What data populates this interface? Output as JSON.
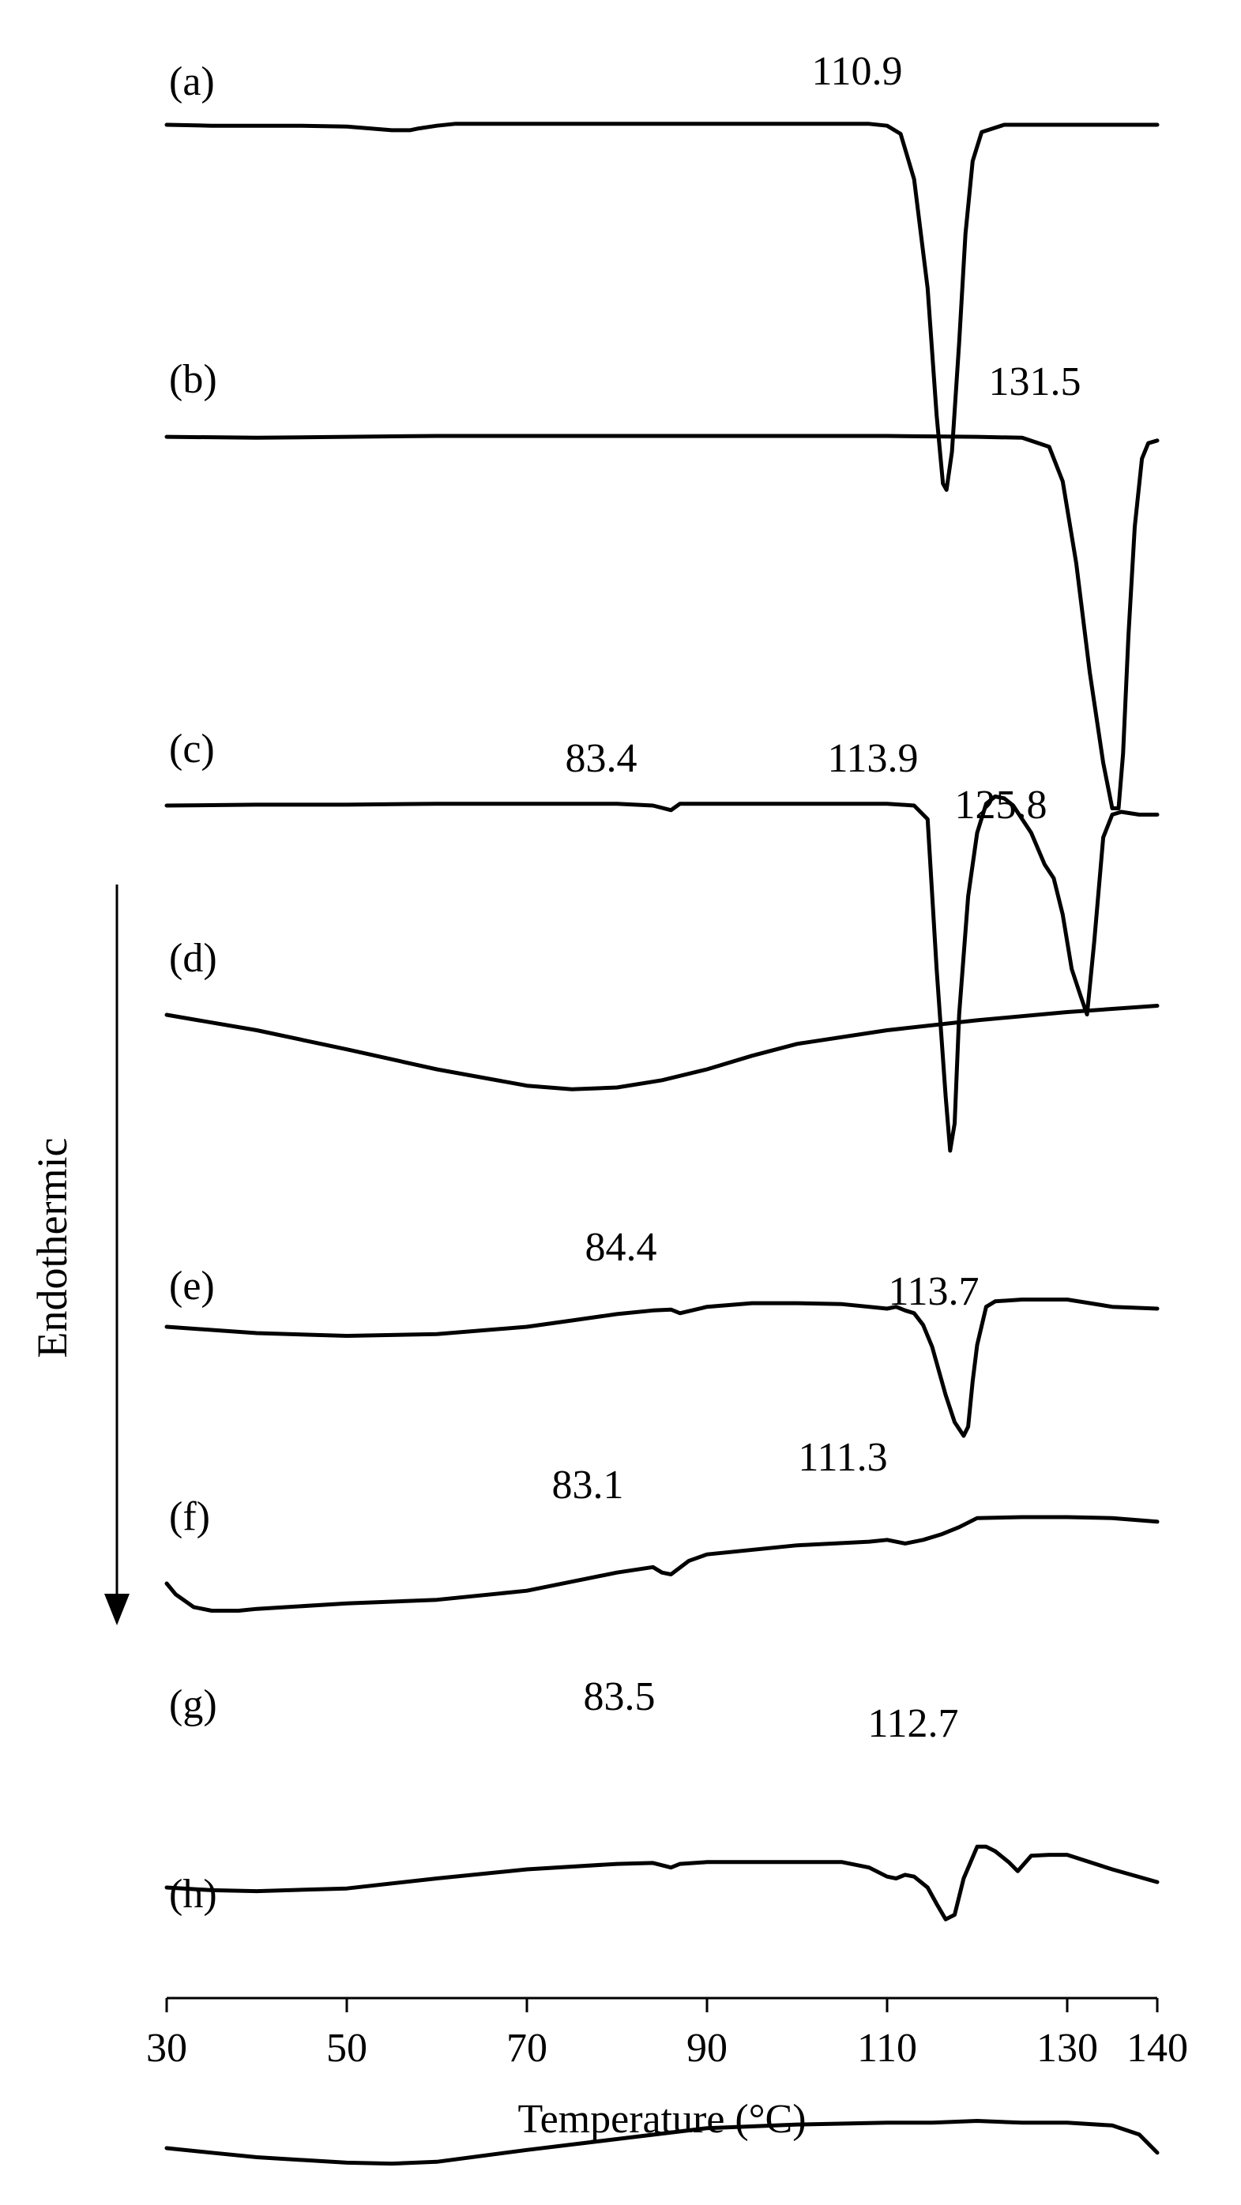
{
  "chart_data": {
    "type": "line",
    "xlabel": "Temperature (°C)",
    "ylabel": "Endothermic",
    "xlim": [
      30,
      140
    ],
    "xticks": [
      "30",
      "50",
      "70",
      "90",
      "110",
      "130",
      "140"
    ],
    "yticks_shown": false,
    "grid": false,
    "legend": "none",
    "series": [
      {
        "name": "(a)",
        "annotations": [
          "110.9"
        ],
        "x": [
          30,
          35,
          40,
          45,
          50,
          55,
          57,
          58,
          60,
          62,
          65,
          70,
          80,
          90,
          100,
          108,
          110,
          111.5,
          113,
          114.5,
          115.5,
          116.2,
          116.6,
          117.2,
          118,
          118.7,
          119.5,
          120.5,
          123,
          130,
          140
        ],
        "y": [
          0,
          0.01,
          0.01,
          0.01,
          0.02,
          0.06,
          0.06,
          0.04,
          0.01,
          -0.01,
          -0.01,
          -0.01,
          -0.01,
          -0.01,
          -0.01,
          -0.01,
          0.01,
          0.1,
          0.6,
          1.8,
          3.2,
          3.95,
          4.02,
          3.6,
          2.4,
          1.2,
          0.4,
          0.08,
          0.0,
          0.0,
          0.0
        ]
      },
      {
        "name": "(b)",
        "annotations": [
          "131.5"
        ],
        "x": [
          30,
          40,
          50,
          60,
          70,
          80,
          90,
          100,
          110,
          120,
          125,
          128,
          129.5,
          131,
          132.5,
          134,
          135,
          135.7,
          136.2,
          136.8,
          137.5,
          138.3,
          139,
          140
        ],
        "y": [
          0.01,
          0.02,
          0.01,
          0.0,
          0.0,
          0.0,
          0.0,
          0.0,
          0.0,
          0.01,
          0.02,
          0.12,
          0.5,
          1.4,
          2.6,
          3.6,
          4.1,
          4.1,
          3.5,
          2.2,
          1.0,
          0.25,
          0.08,
          0.05
        ]
      },
      {
        "name": "(c)",
        "annotations": [
          "83.4",
          "113.9",
          "125.8"
        ],
        "x": [
          30,
          40,
          50,
          60,
          70,
          80,
          84,
          86,
          87,
          90,
          100,
          110,
          113,
          114.5,
          115.5,
          116.5,
          117,
          117.5,
          118,
          119,
          120,
          121,
          122,
          123,
          124,
          126,
          127.5,
          128.5,
          129.5,
          130.5,
          131.5,
          132.2,
          133,
          134,
          135,
          136,
          138,
          140
        ],
        "y": [
          0.0,
          -0.01,
          -0.01,
          -0.02,
          -0.02,
          -0.02,
          0.0,
          0.05,
          -0.02,
          -0.02,
          -0.02,
          -0.02,
          0.0,
          0.15,
          1.8,
          3.2,
          3.8,
          3.5,
          2.3,
          1.0,
          0.3,
          -0.02,
          -0.1,
          -0.08,
          0.0,
          0.3,
          0.65,
          0.8,
          1.2,
          1.8,
          2.1,
          2.3,
          1.5,
          0.35,
          0.1,
          0.07,
          0.1,
          0.1
        ]
      },
      {
        "name": "(d)",
        "annotations": [],
        "x": [
          30,
          40,
          50,
          60,
          70,
          75,
          80,
          85,
          90,
          95,
          100,
          110,
          120,
          130,
          140
        ],
        "y": [
          0.0,
          0.17,
          0.38,
          0.6,
          0.78,
          0.82,
          0.8,
          0.72,
          0.6,
          0.45,
          0.32,
          0.17,
          0.06,
          -0.03,
          -0.1
        ]
      },
      {
        "name": "(e)",
        "annotations": [
          "84.4",
          "113.7"
        ],
        "x": [
          30,
          40,
          50,
          60,
          70,
          75,
          80,
          84,
          86,
          87,
          90,
          95,
          100,
          105,
          110,
          111,
          112,
          113,
          114,
          115,
          116.5,
          117.5,
          118.5,
          119,
          119.5,
          120,
          121,
          122,
          125,
          130,
          135,
          140
        ],
        "y": [
          0.0,
          0.07,
          0.1,
          0.08,
          0.0,
          -0.07,
          -0.14,
          -0.18,
          -0.19,
          -0.15,
          -0.22,
          -0.26,
          -0.26,
          -0.25,
          -0.2,
          -0.22,
          -0.18,
          -0.15,
          -0.02,
          0.22,
          0.75,
          1.05,
          1.2,
          1.1,
          0.6,
          0.2,
          -0.22,
          -0.28,
          -0.3,
          -0.3,
          -0.22,
          -0.2
        ]
      },
      {
        "name": "(f)",
        "annotations": [
          "83.1",
          "111.3"
        ],
        "x": [
          30,
          31,
          33,
          35,
          38,
          40,
          50,
          60,
          70,
          75,
          80,
          84,
          85,
          86,
          88,
          90,
          100,
          108,
          110,
          112,
          114,
          116,
          118,
          120,
          125,
          130,
          135,
          140
        ],
        "y": [
          0.0,
          0.12,
          0.26,
          0.3,
          0.3,
          0.28,
          0.22,
          0.18,
          0.08,
          -0.02,
          -0.12,
          -0.18,
          -0.12,
          -0.1,
          -0.25,
          -0.32,
          -0.42,
          -0.46,
          -0.48,
          -0.44,
          -0.48,
          -0.54,
          -0.62,
          -0.72,
          -0.73,
          -0.73,
          -0.72,
          -0.68
        ]
      },
      {
        "name": "(g)",
        "annotations": [
          "83.5",
          "112.7"
        ],
        "x": [
          30,
          35,
          40,
          50,
          60,
          70,
          80,
          84,
          86,
          87,
          90,
          100,
          105,
          108,
          110,
          111,
          112,
          113,
          114.5,
          115.5,
          116.5,
          117.5,
          118.5,
          120,
          121,
          122,
          123.5,
          124.5,
          126,
          128,
          130,
          135,
          140
        ],
        "y": [
          0.0,
          0.03,
          0.04,
          0.01,
          -0.1,
          -0.2,
          -0.26,
          -0.27,
          -0.22,
          -0.26,
          -0.28,
          -0.28,
          -0.28,
          -0.22,
          -0.12,
          -0.1,
          -0.14,
          -0.12,
          0.0,
          0.18,
          0.35,
          0.3,
          -0.1,
          -0.45,
          -0.45,
          -0.4,
          -0.28,
          -0.18,
          -0.35,
          -0.36,
          -0.36,
          -0.2,
          -0.06
        ]
      },
      {
        "name": "(h)",
        "annotations": [],
        "x": [
          30,
          35,
          40,
          50,
          55,
          60,
          70,
          80,
          90,
          100,
          110,
          115,
          120,
          125,
          130,
          135,
          138,
          140
        ],
        "y": [
          0.0,
          0.05,
          0.1,
          0.16,
          0.17,
          0.15,
          0.02,
          -0.1,
          -0.22,
          -0.26,
          -0.28,
          -0.28,
          -0.3,
          -0.28,
          -0.28,
          -0.25,
          -0.15,
          0.05
        ]
      }
    ]
  }
}
